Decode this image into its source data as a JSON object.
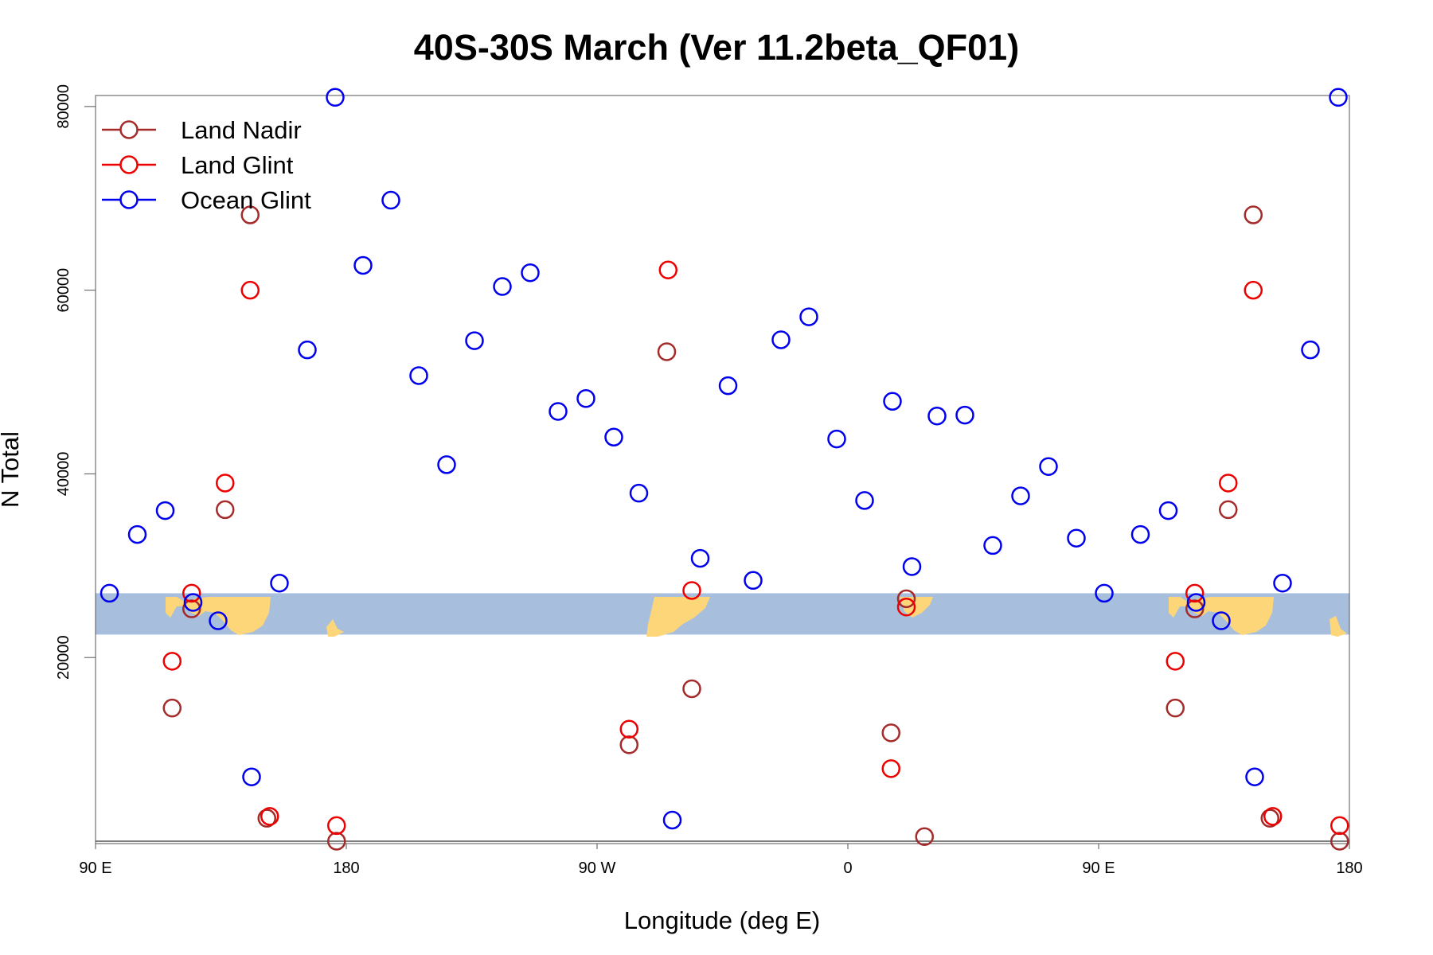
{
  "colors": {
    "land_nadir": "#a52a2a",
    "land_glint": "#ee0000",
    "ocean_glint": "#0000ee",
    "band": "#a7bfdd",
    "land": "#fdd67a",
    "axis": "#555555"
  },
  "chart_data": {
    "type": "scatter",
    "title": "40S-30S March (Ver 11.2beta_QF01)",
    "xlabel": "Longitude (deg E)",
    "ylabel": "N Total",
    "x_ticks": [
      {
        "x": 90,
        "label": "90 E"
      },
      {
        "x": 180,
        "label": "180"
      },
      {
        "x": 270,
        "label": "90 W"
      },
      {
        "x": 360,
        "label": "0"
      },
      {
        "x": 450,
        "label": "90 E"
      },
      {
        "x": 540,
        "label": "180"
      }
    ],
    "y_ticks": [
      {
        "y": 20000,
        "label": "20000"
      },
      {
        "y": 40000,
        "label": "40000"
      },
      {
        "y": 60000,
        "label": "60000"
      },
      {
        "y": 80000,
        "label": "80000"
      }
    ],
    "xlim": [
      90,
      540
    ],
    "ylim": [
      0,
      81200
    ],
    "grid": false,
    "legend_position": "top-left",
    "band_y_range": [
      22500,
      27000
    ],
    "series": [
      {
        "name": "Land Nadir",
        "color_key": "land_nadir",
        "points": [
          [
            117.5,
            14500
          ],
          [
            124.5,
            25300
          ],
          [
            136.5,
            36100
          ],
          [
            145.5,
            68200
          ],
          [
            151.5,
            2500
          ],
          [
            176.5,
            0
          ],
          [
            295,
            53300
          ],
          [
            304,
            16600
          ],
          [
            281.5,
            10500
          ],
          [
            375.5,
            11800
          ],
          [
            381,
            26400
          ],
          [
            387.5,
            500
          ],
          [
            477.5,
            14500
          ],
          [
            484.5,
            25300
          ],
          [
            496.5,
            36100
          ],
          [
            505.5,
            68200
          ],
          [
            511.5,
            2500
          ],
          [
            536.5,
            0
          ]
        ]
      },
      {
        "name": "Land Glint",
        "color_key": "land_glint",
        "points": [
          [
            117.5,
            19600
          ],
          [
            124.5,
            27000
          ],
          [
            136.5,
            39000
          ],
          [
            145.5,
            60000
          ],
          [
            152.5,
            2700
          ],
          [
            176.5,
            1700
          ],
          [
            295.5,
            62200
          ],
          [
            304,
            27300
          ],
          [
            281.5,
            12200
          ],
          [
            375.5,
            7900
          ],
          [
            381,
            25500
          ],
          [
            477.5,
            19600
          ],
          [
            484.5,
            27000
          ],
          [
            496.5,
            39000
          ],
          [
            505.5,
            60000
          ],
          [
            512.5,
            2700
          ],
          [
            536.5,
            1700
          ]
        ]
      },
      {
        "name": "Ocean Glint",
        "color_key": "ocean_glint",
        "points": [
          [
            95,
            27000
          ],
          [
            105,
            33400
          ],
          [
            115,
            36000
          ],
          [
            125,
            26000
          ],
          [
            134,
            24000
          ],
          [
            146,
            7000
          ],
          [
            156,
            28100
          ],
          [
            166,
            53500
          ],
          [
            176,
            81000
          ],
          [
            186,
            62700
          ],
          [
            196,
            69800
          ],
          [
            206,
            50700
          ],
          [
            216,
            41000
          ],
          [
            226,
            54500
          ],
          [
            236,
            60400
          ],
          [
            246,
            61900
          ],
          [
            256,
            46800
          ],
          [
            266,
            48200
          ],
          [
            276,
            44000
          ],
          [
            285,
            37900
          ],
          [
            297,
            2300
          ],
          [
            307,
            30800
          ],
          [
            317,
            49600
          ],
          [
            326,
            28400
          ],
          [
            336,
            54600
          ],
          [
            346,
            57100
          ],
          [
            356,
            43800
          ],
          [
            366,
            37100
          ],
          [
            376,
            47900
          ],
          [
            383,
            29900
          ],
          [
            392,
            46300
          ],
          [
            402,
            46400
          ],
          [
            412,
            32200
          ],
          [
            422,
            37600
          ],
          [
            432,
            40800
          ],
          [
            442,
            33000
          ],
          [
            452,
            27000
          ],
          [
            465,
            33400
          ],
          [
            475,
            36000
          ],
          [
            485,
            26000
          ],
          [
            494,
            24000
          ],
          [
            506,
            7000
          ],
          [
            516,
            28100
          ],
          [
            526,
            53500
          ],
          [
            536,
            81000
          ]
        ]
      }
    ]
  }
}
